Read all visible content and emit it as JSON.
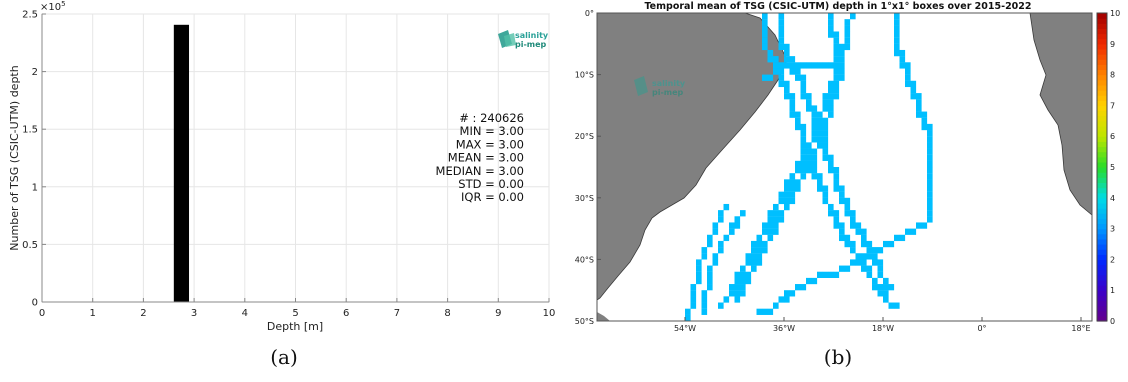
{
  "chart_data": [
    {
      "type": "bar",
      "title": "",
      "xlabel": "Depth [m]",
      "ylabel": "Number of TSG (CSIC-UTM) depth",
      "y_multiplier": "×10",
      "y_multiplier_exp": "5",
      "xlim": [
        0,
        10
      ],
      "ylim": [
        0,
        2.5
      ],
      "xticks": [
        "0",
        "1",
        "2",
        "3",
        "4",
        "5",
        "6",
        "7",
        "8",
        "9",
        "10"
      ],
      "yticks": [
        "0",
        "0.5",
        "1",
        "1.5",
        "2",
        "2.5"
      ],
      "grid": true,
      "bars": [
        {
          "x0": 2.6,
          "x1": 2.9,
          "value": 2.40626
        }
      ],
      "bar_color": "#000000",
      "stats": [
        "# : 240626",
        "MIN = 3.00",
        "MAX =  3.00",
        "MEAN = 3.00",
        "MEDIAN = 3.00",
        "STD = 0.00",
        "IQR = 0.00"
      ],
      "logo": {
        "line1": "salinity",
        "line2": "pi-mep"
      },
      "caption": "(a)"
    },
    {
      "type": "heatmap",
      "title": "Temporal mean of TSG (CSIC-UTM) depth in 1°x1° boxes over 2015-2022",
      "lat_range": [
        -50,
        0
      ],
      "lon_range": [
        -70,
        20
      ],
      "lat_ticks": [
        "0°",
        "10°S",
        "20°S",
        "30°S",
        "40°S",
        "50°S"
      ],
      "lon_ticks": [
        "54°W",
        "36°W",
        "18°W",
        "0°",
        "18°E"
      ],
      "colorbar": {
        "min": 0,
        "max": 10,
        "ticks": [
          "0",
          "1",
          "2",
          "3",
          "4",
          "5",
          "6",
          "7",
          "8",
          "9",
          "10"
        ]
      },
      "cell_value": 3,
      "cell_color": "#00bfff",
      "land_color": "#808080",
      "tracks": [
        [
          [
            -40,
            -1
          ],
          [
            -40,
            -5
          ],
          [
            -37,
            -9
          ],
          [
            -35,
            -14
          ],
          [
            -33,
            -19
          ],
          [
            -31,
            -24
          ],
          [
            -29,
            -29
          ],
          [
            -27,
            -33
          ],
          [
            -24,
            -38
          ],
          [
            -21,
            -42
          ],
          [
            -18,
            -46
          ],
          [
            -16,
            -48
          ]
        ],
        [
          [
            -37,
            -1
          ],
          [
            -36,
            -6
          ],
          [
            -33,
            -11
          ],
          [
            -31,
            -16
          ],
          [
            -29,
            -21
          ],
          [
            -27,
            -26
          ],
          [
            -25,
            -31
          ],
          [
            -22,
            -36
          ],
          [
            -19,
            -41
          ],
          [
            -17,
            -45
          ]
        ],
        [
          [
            -28,
            -1
          ],
          [
            -26,
            -6
          ],
          [
            -27,
            -11
          ],
          [
            -29,
            -16
          ],
          [
            -31,
            -21
          ],
          [
            -34,
            -26
          ],
          [
            -37,
            -31
          ],
          [
            -40,
            -36
          ],
          [
            -43,
            -41
          ],
          [
            -46,
            -46
          ],
          [
            -48,
            -48
          ]
        ],
        [
          [
            -24,
            -1
          ],
          [
            -25,
            -6
          ],
          [
            -26,
            -11
          ],
          [
            -28,
            -17
          ],
          [
            -30,
            -22
          ],
          [
            -33,
            -27
          ],
          [
            -36,
            -32
          ],
          [
            -39,
            -37
          ],
          [
            -42,
            -42
          ],
          [
            -45,
            -47
          ]
        ],
        [
          [
            -27,
            -9
          ],
          [
            -32,
            -9
          ],
          [
            -36,
            -9
          ],
          [
            -40,
            -11
          ]
        ],
        [
          [
            -16,
            -1
          ],
          [
            -16,
            -4
          ],
          [
            -14,
            -9
          ],
          [
            -12,
            -14
          ],
          [
            -10,
            -19
          ],
          [
            -10,
            -24
          ],
          [
            -10,
            -29
          ],
          [
            -10,
            -34
          ]
        ],
        [
          [
            -10,
            -34
          ],
          [
            -14,
            -36
          ],
          [
            -18,
            -38
          ],
          [
            -22,
            -40
          ],
          [
            -26,
            -42
          ],
          [
            -30,
            -43
          ],
          [
            -34,
            -45
          ],
          [
            -38,
            -48
          ],
          [
            -41,
            -49
          ]
        ],
        [
          [
            -47,
            -32
          ],
          [
            -49,
            -36
          ],
          [
            -51,
            -40
          ],
          [
            -52,
            -44
          ],
          [
            -53,
            -48
          ],
          [
            -54,
            -50
          ]
        ],
        [
          [
            -44,
            -33
          ],
          [
            -47,
            -37
          ],
          [
            -49,
            -41
          ],
          [
            -50,
            -45
          ],
          [
            -51,
            -49
          ]
        ]
      ],
      "logo": {
        "line1": "salinity",
        "line2": "pi-mep"
      },
      "caption": "(b)"
    }
  ]
}
